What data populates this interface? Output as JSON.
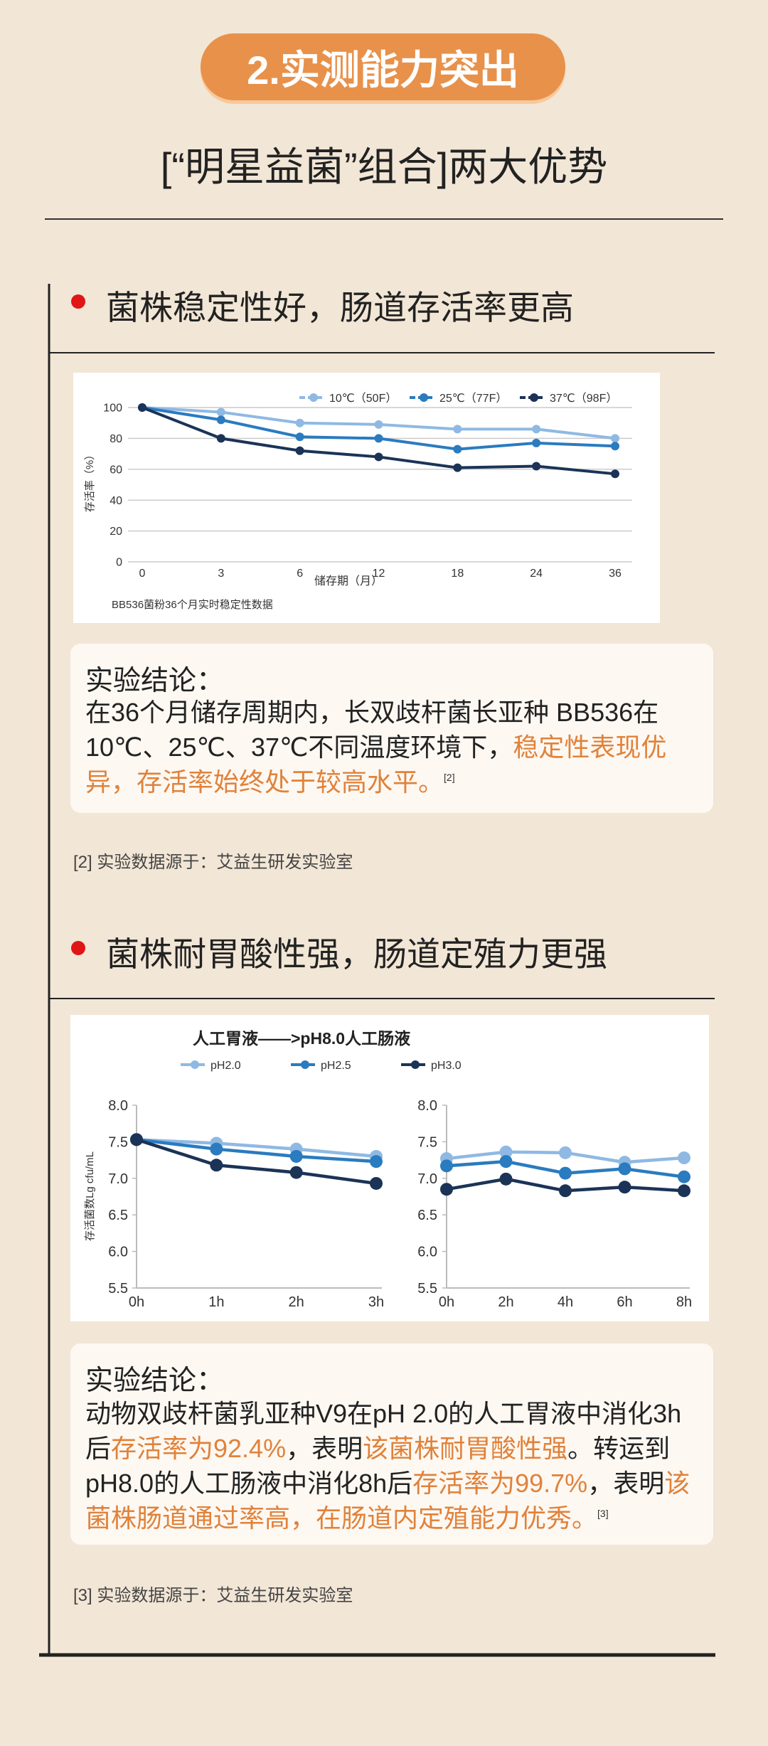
{
  "header": {
    "badge": "2.实测能力突出",
    "subtitle": "[“明星益菌”组合]两大优势"
  },
  "sections": [
    {
      "heading": "菌株稳定性好，肠道存活率更高",
      "conclusion": {
        "title": "实验结论：",
        "body": [
          {
            "text": "在36个月储存周期内，长双歧杆菌长亚种 BB536在10℃、25℃、37℃不同温度环境下，",
            "color": "#222222"
          },
          {
            "text": "稳定性表现优异，存活率始终处于较高水平。",
            "color": "#e0823b"
          }
        ],
        "ref": "[2]"
      },
      "footnote": "[2] 实验数据源于：艾益生研发实验室"
    },
    {
      "heading": "菌株耐胃酸性强，肠道定殖力更强",
      "conclusion": {
        "title": "实验结论：",
        "body": [
          {
            "text": "动物双歧杆菌乳亚种V9在pH 2.0的人工胃液中消化3h后",
            "color": "#222222"
          },
          {
            "text": "存活率为92.4%",
            "color": "#e0823b"
          },
          {
            "text": "，表明",
            "color": "#222222"
          },
          {
            "text": "该菌株耐胃酸性强",
            "color": "#e0823b"
          },
          {
            "text": "。转运到pH8.0的人工肠液中消化8h后",
            "color": "#222222"
          },
          {
            "text": "存活率为99.7%",
            "color": "#e0823b"
          },
          {
            "text": "，表明",
            "color": "#222222"
          },
          {
            "text": "该菌株肠道通过率高，在肠道内定殖能力优秀。",
            "color": "#e0823b"
          }
        ],
        "ref": "[3]"
      },
      "footnote": "[3] 实验数据源于：艾益生研发实验室"
    }
  ],
  "chart_data": [
    {
      "type": "line",
      "y_label": "存活率（%）",
      "x_label": "储存期（月）",
      "caption": "BB536菌粉36个月实时稳定性数据",
      "categories": [
        "0",
        "3",
        "6",
        "12",
        "18",
        "24",
        "36"
      ],
      "series": [
        {
          "name": "10℃（50F）",
          "color": "#8fb9e3",
          "values": [
            100,
            97,
            90,
            89,
            86,
            86,
            80
          ]
        },
        {
          "name": "25℃（77F）",
          "color": "#2a7bbf",
          "values": [
            100,
            92,
            81,
            80,
            73,
            77,
            75
          ]
        },
        {
          "name": "37℃（98F）",
          "color": "#1b3357",
          "values": [
            100,
            80,
            72,
            68,
            61,
            62,
            57
          ]
        }
      ],
      "ylim": [
        0,
        100
      ],
      "yticks": [
        0,
        20,
        40,
        60,
        80,
        100
      ],
      "grid": true,
      "legend": "top-right"
    },
    {
      "type": "line",
      "title": "人工胃液——>pH8.0人工肠液",
      "y_label": "存活菌数Lg cfu/mL",
      "categories": [
        "0h",
        "1h",
        "2h",
        "3h"
      ],
      "series": [
        {
          "name": "pH2.0",
          "color": "#8fb9e3",
          "values": [
            7.53,
            7.48,
            7.4,
            7.3
          ]
        },
        {
          "name": "pH2.5",
          "color": "#2a7bbf",
          "values": [
            7.53,
            7.4,
            7.3,
            7.23
          ]
        },
        {
          "name": "pH3.0",
          "color": "#1b3357",
          "values": [
            7.53,
            7.18,
            7.08,
            6.93
          ]
        }
      ],
      "ylim": [
        5.5,
        8
      ],
      "yticks": [
        5.5,
        {
          "value": 6,
          "label": "6.0"
        },
        6.5,
        {
          "value": 7,
          "label": "7.0"
        },
        7.5,
        {
          "value": 8,
          "label": "8.0"
        }
      ],
      "grid": false,
      "legend": "top-left"
    },
    {
      "type": "line",
      "categories": [
        "0h",
        "2h",
        "4h",
        "6h",
        "8h"
      ],
      "series": [
        {
          "color": "#8fb9e3",
          "values": [
            7.27,
            7.36,
            7.35,
            7.22,
            7.28
          ]
        },
        {
          "color": "#2a7bbf",
          "values": [
            7.17,
            7.23,
            7.07,
            7.13,
            7.02
          ]
        },
        {
          "color": "#1b3357",
          "values": [
            6.85,
            6.99,
            6.83,
            6.88,
            6.83
          ]
        }
      ],
      "ylim": [
        5.5,
        8
      ],
      "yticks": [
        5.5,
        {
          "value": 6,
          "label": "6.0"
        },
        6.5,
        {
          "value": 7,
          "label": "7.0"
        },
        7.5,
        {
          "value": 8,
          "label": "8.0"
        }
      ],
      "grid": false
    }
  ]
}
